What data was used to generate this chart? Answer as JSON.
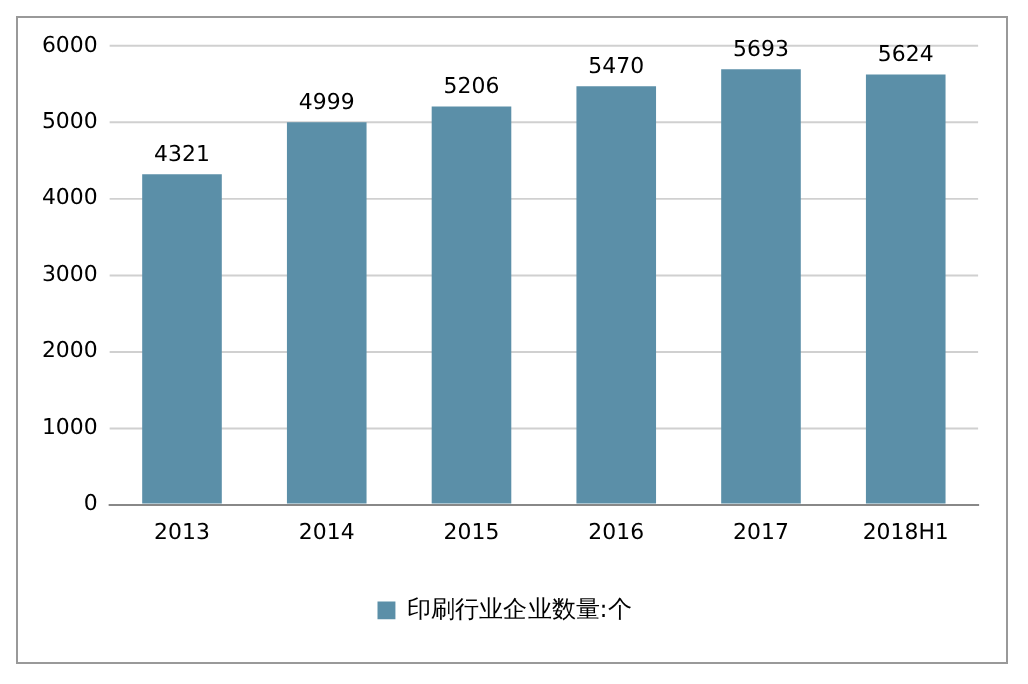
{
  "chart_data": {
    "type": "bar",
    "categories": [
      "2013",
      "2014",
      "2015",
      "2016",
      "2017",
      "2018H1"
    ],
    "series": [
      {
        "name": "印刷行业企业数量:个",
        "color": "#5b8fa8",
        "values": [
          4321,
          4999,
          5206,
          5470,
          5693,
          5624
        ]
      }
    ],
    "ylim": [
      0,
      6000
    ],
    "yticks": [
      0,
      1000,
      2000,
      3000,
      4000,
      5000,
      6000
    ],
    "grid": "y",
    "legend": "bottom",
    "data_labels": true
  }
}
